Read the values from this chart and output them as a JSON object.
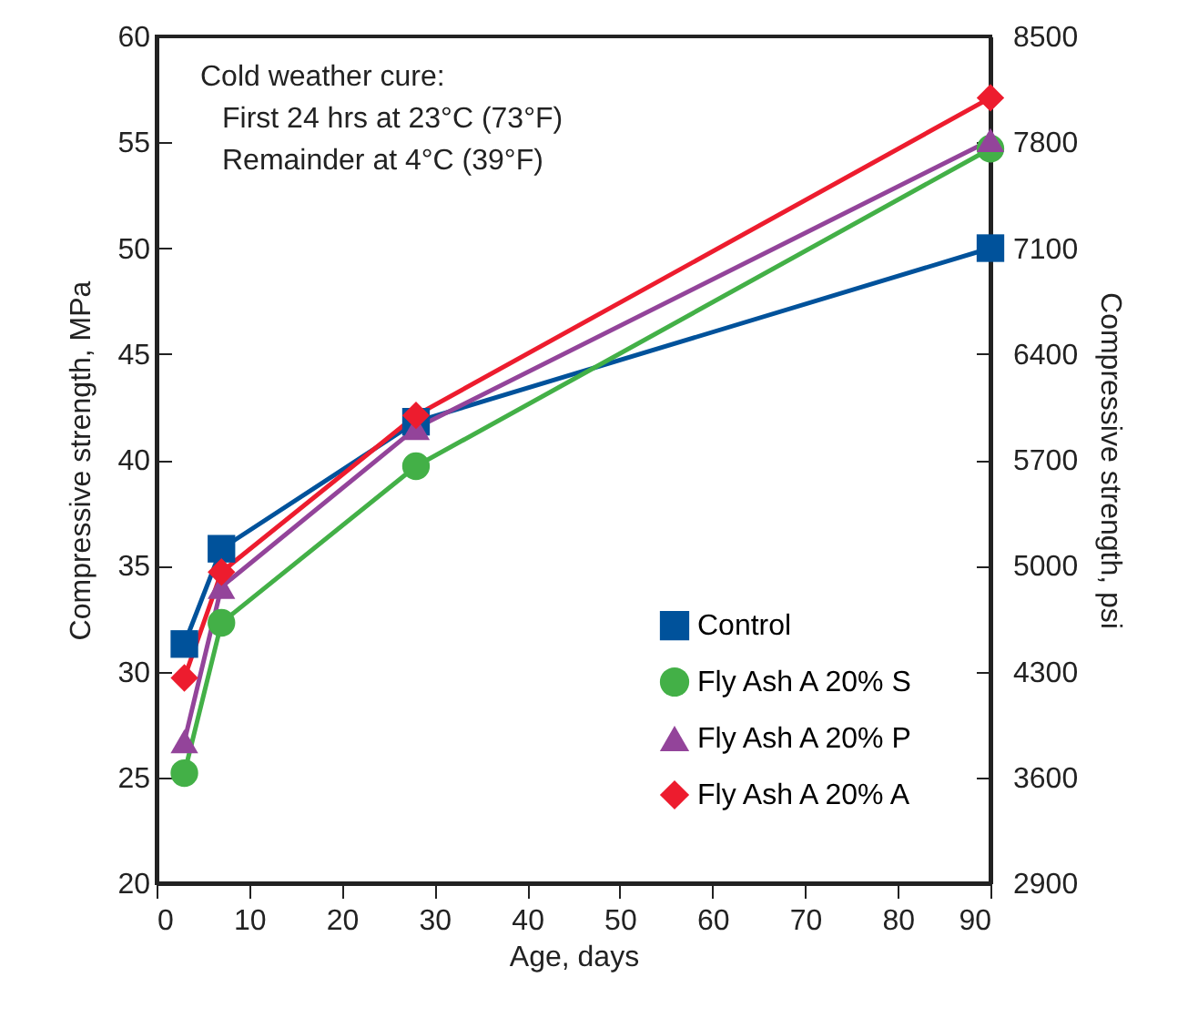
{
  "chart_data": {
    "type": "line",
    "xlabel": "Age, days",
    "ylabel": "Compressive strength, MPa",
    "y2label": "Compressive strength, psi",
    "annotations": [
      "Cold weather cure:",
      "First 24 hrs at 23°C (73°F)",
      "Remainder at 4°C (39°F)"
    ],
    "x": [
      3,
      7,
      28,
      90
    ],
    "series": [
      {
        "name": "Control",
        "color": "#00529b",
        "marker": "square",
        "values": [
          31.3,
          35.8,
          41.8,
          50.0
        ]
      },
      {
        "name": "Fly Ash A 20% S",
        "color": "#43b047",
        "marker": "circle",
        "values": [
          25.2,
          32.3,
          39.7,
          54.7
        ]
      },
      {
        "name": "Fly Ash A 20% P",
        "color": "#93449a",
        "marker": "triangle",
        "values": [
          26.7,
          34.0,
          41.5,
          55.1
        ]
      },
      {
        "name": "Fly Ash A 20% A",
        "color": "#ed1c2e",
        "marker": "diamond",
        "values": [
          29.7,
          34.7,
          42.1,
          57.1
        ]
      }
    ],
    "xlim": [
      0,
      90
    ],
    "xticks": [
      0,
      10,
      20,
      30,
      40,
      50,
      60,
      70,
      80,
      90
    ],
    "ylim": [
      20,
      60
    ],
    "yticks": [
      20,
      25,
      30,
      35,
      40,
      45,
      50,
      55,
      60
    ],
    "y2lim": [
      2900,
      8500
    ],
    "y2ticks": [
      2900,
      3600,
      4300,
      5000,
      5700,
      6400,
      7100,
      7800,
      8500
    ],
    "legend": "bottom right",
    "line_style": "solid"
  }
}
